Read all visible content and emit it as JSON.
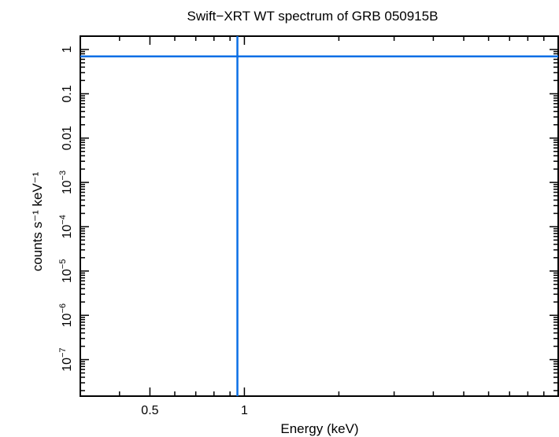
{
  "chart_data": {
    "type": "line",
    "title": "Swift−XRT WT spectrum of GRB 050915B",
    "xlabel": "Energy (keV)",
    "ylabel": "counts s⁻¹ keV⁻¹",
    "x_scale": "log",
    "y_scale": "log",
    "xlim": [
      0.3,
      10
    ],
    "ylim": [
      1.5e-08,
      2
    ],
    "x_ticks": [
      {
        "value": 0.5,
        "label": "0.5"
      },
      {
        "value": 1,
        "label": "1"
      }
    ],
    "y_ticks": [
      {
        "value": 1,
        "label": "1"
      },
      {
        "value": 0.1,
        "label": "0.1"
      },
      {
        "value": 0.01,
        "label": "0.01"
      },
      {
        "value": 0.001,
        "mant": "10",
        "exp": "−3"
      },
      {
        "value": 0.0001,
        "mant": "10",
        "exp": "−4"
      },
      {
        "value": 1e-05,
        "mant": "10",
        "exp": "−5"
      },
      {
        "value": 1e-06,
        "mant": "10",
        "exp": "−6"
      },
      {
        "value": 1e-07,
        "mant": "10",
        "exp": "−7"
      }
    ],
    "series": [
      {
        "color": "#0a6fe6",
        "points": [
          {
            "x": 0.95,
            "y": 0.7,
            "xerr": [
              0.3,
              10
            ],
            "yerr": [
              1.5e-08,
              2
            ]
          }
        ]
      }
    ],
    "grid": false
  }
}
